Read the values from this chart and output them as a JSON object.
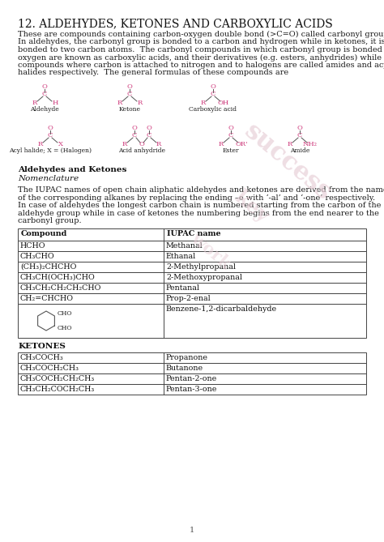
{
  "title": "12. ALDEHYDES, KETONES AND CARBOXYLIC ACIDS",
  "intro_lines": [
    "These are compounds containing carbon-oxygen double bond (>C=O) called carbonyl group.",
    "In aldehydes, the carbonyl group is bonded to a carbon and hydrogen while in ketones, it is",
    "bonded to two carbon atoms.  The carbonyl compounds in which carbonyl group is bonded to",
    "oxygen are known as carboxylic acids, and their derivatives (e.g. esters, anhydrides) while in",
    "compounds where carbon is attached to nitrogen and to halogens are called amides and acyl",
    "halides respectively.  The general formulas of these compounds are"
  ],
  "section_header": "Aldehydes and Ketones",
  "section_subheader": "Nomenclature",
  "nomenclature_lines": [
    "The IUPAC names of open chain aliphatic aldehydes and ketones are derived from the names",
    "of the corresponding alkanes by replacing the ending –e with ‘-al’ and ‘-one’ respectively.",
    "In case of aldehydes the longest carbon chain is numbered starting from the carbon of the",
    "aldehyde group while in case of ketones the numbering begins from the end nearer to the",
    "carbonyl group."
  ],
  "aldehyde_table_headers": [
    "Compound",
    "IUPAC name"
  ],
  "aldehyde_rows": [
    [
      "HCHO",
      "Methanal"
    ],
    [
      "CH₃CHO",
      "Ethanal"
    ],
    [
      "(CH₃)₂CHCHO",
      "2-Methylpropanal"
    ],
    [
      "CH₃CH(OCH₃)CHO",
      "2-Methoxypropanal"
    ],
    [
      "CH₃CH₂CH₂CH₂CHO",
      "Pentanal"
    ],
    [
      "CH₂=CHCHO",
      "Prop-2-enal"
    ],
    [
      "__benzene__",
      "Benzene-1,2-dicarbaldehyde"
    ]
  ],
  "ketones_header": "KETONES",
  "ketone_rows": [
    [
      "CH₃COCH₃",
      "Propanone"
    ],
    [
      "CH₃COCH₂CH₃",
      "Butanone"
    ],
    [
      "CH₃COCH₂CH₂CH₃",
      "Pentan-2-one"
    ],
    [
      "CH₃CH₂COCH₂CH₃",
      "Pentan-3-one"
    ]
  ],
  "page_number": "1",
  "bg_color": "#ffffff",
  "text_color": "#1a1a1a",
  "title_color": "#111111",
  "pink_color": "#cc3377",
  "watermark_color": "#e8d0d8",
  "table_line_color": "#444444",
  "title_fontsize": 10,
  "body_fontsize": 7.0,
  "section_fontsize": 7.5,
  "table_fontsize": 6.8,
  "struct_color": "#cc3377",
  "line_color": "#555555"
}
